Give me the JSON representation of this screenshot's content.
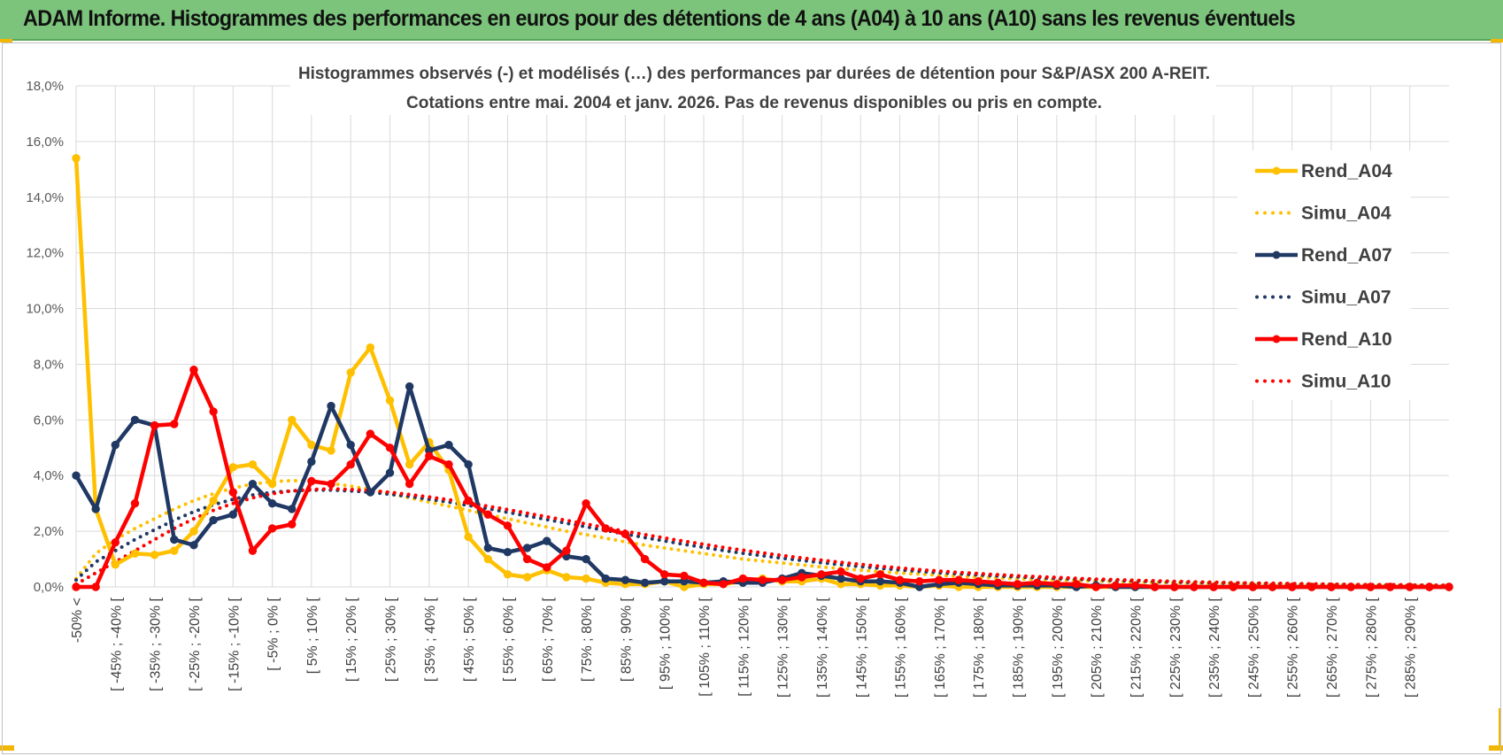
{
  "header": {
    "title": "ADAM Informe. Histogrammes des performances en euros pour des détentions de 4 ans (A04) à 10 ans (A10) sans les revenus éventuels"
  },
  "chart_data": {
    "type": "line",
    "title": "Histogrammes observés (-) et modélisés (…) des performances par durées de détention pour S&P/ASX 200 A-REIT.",
    "subtitle": "Cotations entre mai. 2004 et janv. 2026.  Pas de revenus disponibles ou pris en compte.",
    "xlabel": "",
    "ylabel": "",
    "ylim": [
      0,
      18
    ],
    "y_ticks": [
      "0,0%",
      "2,0%",
      "4,0%",
      "6,0%",
      "8,0%",
      "10,0%",
      "12,0%",
      "14,0%",
      "16,0%",
      "18,0%"
    ],
    "grid": true,
    "legend_position": "right",
    "categories": [
      "-50% <",
      "[ -50% ; -45% [",
      "[ -45% ; -40% [",
      "[ -40% ; -35% [",
      "[ -35% ; -30% [",
      "[ -30% ; -25% [",
      "[ -25% ; -20% [",
      "[ -20% ; -15% [",
      "[ -15% ; -10% [",
      "[ -10% ; -5% [",
      "[ -5% ; 0% [",
      "[ 0% ; 5% [",
      "[ 5% ; 10% [",
      "[ 10% ; 15% [",
      "[ 15% ; 20% [",
      "[ 20% ; 25% [",
      "[ 25% ; 30% [",
      "[ 30% ; 35% [",
      "[ 35% ; 40% [",
      "[ 40% ; 45% [",
      "[ 45% ; 50% [",
      "[ 50% ; 55% [",
      "[ 55% ; 60% [",
      "[ 60% ; 65% [",
      "[ 65% ; 70% [",
      "[ 70% ; 75% [",
      "[ 75% ; 80% [",
      "[ 80% ; 85% [",
      "[ 85% ; 90% [",
      "[ 90% ; 95% [",
      "[ 95% ; 100% [",
      "[ 100% ; 105% [",
      "[ 105% ; 110% [",
      "[ 110% ; 115% [",
      "[ 115% ; 120% [",
      "[ 120% ; 125% [",
      "[ 125% ; 130% [",
      "[ 130% ; 135% [",
      "[ 135% ; 140% [",
      "[ 140% ; 145% [",
      "[ 145% ; 150% [",
      "[ 150% ; 155% [",
      "[ 155% ; 160% [",
      "[ 160% ; 165% [",
      "[ 165% ; 170% [",
      "[ 170% ; 175% [",
      "[ 175% ; 180% [",
      "[ 180% ; 185% [",
      "[ 185% ; 190% [",
      "[ 190% ; 195% [",
      "[ 195% ; 200% [",
      "[ 200% ; 205% [",
      "[ 205% ; 210% [",
      "[ 210% ; 215% [",
      "[ 215% ; 220% [",
      "[ 220% ; 225% [",
      "[ 225% ; 230% [",
      "[ 230% ; 235% [",
      "[ 235% ; 240% [",
      "[ 240% ; 245% [",
      "[ 245% ; 250% [",
      "[ 250% ; 255% [",
      "[ 255% ; 260% [",
      "[ 260% ; 265% [",
      "[ 265% ; 270% [",
      "[ 270% ; 275% [",
      "[ 275% ; 280% [",
      "[ 280% ; 285% [",
      "[ 285% ; 290% [",
      "[ 290% ; 295% [",
      "[ 295% ; 300% ["
    ],
    "visible_tick_labels": [
      "-50% <",
      "[ -45% ; -40% [",
      "[ -35% ; -30% [",
      "[ -25% ; -20% [",
      "[ -15% ; -10% [",
      "[ -5% ; 0% [",
      "[ 5% ; 10% [",
      "[ 15% ; 20% [",
      "[ 25% ; 30% [",
      "[ 35% ; 40% [",
      "[ 45% ; 50% [",
      "[ 55% ; 60% [",
      "[ 65% ; 70% [",
      "[ 75% ; 80% [",
      "[ 85% ; 90% [",
      "[ 95% ; 100% [",
      "[ 105% ; 110% [",
      "[ 115% ; 120% [",
      "[ 125% ; 130% [",
      "[ 135% ; 140% [",
      "[ 145% ; 150% [",
      "[ 155% ; 160% [",
      "[ 165% ; 170% [",
      "[ 175% ; 180% [",
      "[ 185% ; 190% [",
      "[ 195% ; 200% [",
      "[ 205% ; 210% [",
      "[ 215% ; 220% [",
      "[ 225% ; 230% [",
      "[ 235% ; 240% [",
      "[ 245% ; 250% [",
      "[ 255% ; 260% [",
      "[ 265% ; 270% [",
      "[ 275% ; 280% [",
      "[ 285% ; 290% ["
    ],
    "series": [
      {
        "name": "Rend_A04",
        "color": "#ffc000",
        "style": "solid",
        "markers": true,
        "values": [
          15.4,
          2.8,
          0.8,
          1.2,
          1.15,
          1.3,
          2.0,
          3.1,
          4.3,
          4.4,
          3.7,
          6.0,
          5.1,
          4.9,
          7.7,
          8.6,
          6.7,
          4.4,
          5.2,
          4.2,
          1.8,
          1.0,
          0.45,
          0.35,
          0.6,
          0.35,
          0.3,
          0.15,
          0.1,
          0.1,
          0.2,
          0.0,
          0.1,
          0.1,
          0.2,
          0.3,
          0.2,
          0.2,
          0.3,
          0.1,
          0.1,
          0.05,
          0.05,
          0.0,
          0.05,
          0.0,
          0.0,
          0.0,
          0.0,
          0.0,
          0.0,
          0.0,
          0.0,
          0.0,
          0.0,
          0.0,
          0.0,
          0.0,
          0.0,
          0.0,
          0.0,
          0.0,
          0.0,
          0.0,
          0.0,
          0.0,
          0.0,
          0.0,
          0.0,
          0.0,
          0.0
        ]
      },
      {
        "name": "Simu_A04",
        "color": "#ffc000",
        "style": "dotted",
        "markers": false,
        "values": [
          0.3,
          1.2,
          1.7,
          2.1,
          2.45,
          2.8,
          3.1,
          3.35,
          3.55,
          3.7,
          3.78,
          3.82,
          3.8,
          3.72,
          3.62,
          3.5,
          3.35,
          3.2,
          3.05,
          2.9,
          2.75,
          2.6,
          2.45,
          2.3,
          2.15,
          2.0,
          1.88,
          1.75,
          1.62,
          1.5,
          1.4,
          1.3,
          1.2,
          1.1,
          1.0,
          0.93,
          0.86,
          0.79,
          0.72,
          0.66,
          0.6,
          0.55,
          0.5,
          0.46,
          0.42,
          0.38,
          0.35,
          0.32,
          0.29,
          0.27,
          0.25,
          0.23,
          0.21,
          0.19,
          0.17,
          0.16,
          0.15,
          0.14,
          0.13,
          0.12,
          0.11,
          0.1,
          0.09,
          0.08,
          0.07,
          0.07,
          0.06,
          0.06,
          0.05,
          0.05,
          0.04
        ]
      },
      {
        "name": "Rend_A07",
        "color": "#203864",
        "style": "solid",
        "markers": true,
        "values": [
          4.0,
          2.8,
          5.1,
          6.0,
          5.8,
          1.7,
          1.5,
          2.4,
          2.6,
          3.7,
          3.0,
          2.8,
          4.5,
          6.5,
          5.1,
          3.4,
          4.1,
          7.2,
          4.9,
          5.1,
          4.4,
          1.4,
          1.25,
          1.4,
          1.65,
          1.1,
          1.0,
          0.3,
          0.25,
          0.15,
          0.2,
          0.2,
          0.15,
          0.2,
          0.15,
          0.15,
          0.3,
          0.5,
          0.4,
          0.3,
          0.2,
          0.2,
          0.15,
          0.0,
          0.1,
          0.15,
          0.1,
          0.05,
          0.05,
          0.05,
          0.05,
          0.0,
          0.05,
          0.0,
          0.0,
          0.0,
          0.0,
          0.0,
          0.0,
          0.0,
          0.0,
          0.0,
          0.0,
          0.0,
          0.0,
          0.0,
          0.0,
          0.0,
          0.0,
          0.0,
          0.0
        ]
      },
      {
        "name": "Simu_A07",
        "color": "#203864",
        "style": "dotted",
        "markers": false,
        "values": [
          0.25,
          0.9,
          1.3,
          1.7,
          2.05,
          2.4,
          2.7,
          2.95,
          3.15,
          3.3,
          3.4,
          3.45,
          3.48,
          3.48,
          3.45,
          3.4,
          3.33,
          3.25,
          3.15,
          3.05,
          2.93,
          2.81,
          2.68,
          2.55,
          2.42,
          2.29,
          2.16,
          2.03,
          1.9,
          1.77,
          1.65,
          1.53,
          1.42,
          1.31,
          1.21,
          1.12,
          1.03,
          0.95,
          0.87,
          0.8,
          0.73,
          0.67,
          0.61,
          0.56,
          0.51,
          0.47,
          0.43,
          0.39,
          0.36,
          0.33,
          0.3,
          0.28,
          0.25,
          0.23,
          0.21,
          0.19,
          0.17,
          0.16,
          0.15,
          0.14,
          0.13,
          0.12,
          0.11,
          0.1,
          0.09,
          0.08,
          0.07,
          0.07,
          0.06,
          0.06,
          0.05
        ]
      },
      {
        "name": "Rend_A10",
        "color": "#ff0000",
        "style": "solid",
        "markers": true,
        "values": [
          0.0,
          0.0,
          1.6,
          3.0,
          5.8,
          5.85,
          7.8,
          6.3,
          3.4,
          1.3,
          2.1,
          2.25,
          3.8,
          3.7,
          4.4,
          5.5,
          5.0,
          3.7,
          4.7,
          4.4,
          3.1,
          2.6,
          2.2,
          1.0,
          0.7,
          1.3,
          3.0,
          2.1,
          1.9,
          1.0,
          0.45,
          0.4,
          0.15,
          0.1,
          0.3,
          0.25,
          0.25,
          0.35,
          0.45,
          0.55,
          0.3,
          0.45,
          0.25,
          0.2,
          0.25,
          0.25,
          0.2,
          0.15,
          0.1,
          0.15,
          0.1,
          0.1,
          0.0,
          0.05,
          0.05,
          0.0,
          0.0,
          0.0,
          0.0,
          0.0,
          0.0,
          0.0,
          0.0,
          0.0,
          0.0,
          0.0,
          0.0,
          0.0,
          0.0,
          0.0,
          0.0
        ]
      },
      {
        "name": "Simu_A10",
        "color": "#ff0000",
        "style": "dotted",
        "markers": false,
        "values": [
          0.1,
          0.5,
          0.9,
          1.3,
          1.7,
          2.1,
          2.45,
          2.75,
          3.0,
          3.2,
          3.35,
          3.45,
          3.5,
          3.52,
          3.5,
          3.46,
          3.4,
          3.32,
          3.23,
          3.13,
          3.02,
          2.9,
          2.78,
          2.65,
          2.52,
          2.39,
          2.26,
          2.13,
          2.0,
          1.88,
          1.76,
          1.64,
          1.53,
          1.42,
          1.32,
          1.22,
          1.13,
          1.04,
          0.96,
          0.88,
          0.81,
          0.74,
          0.68,
          0.62,
          0.57,
          0.52,
          0.48,
          0.44,
          0.4,
          0.37,
          0.34,
          0.31,
          0.28,
          0.26,
          0.24,
          0.22,
          0.2,
          0.18,
          0.17,
          0.15,
          0.14,
          0.13,
          0.12,
          0.11,
          0.1,
          0.09,
          0.08,
          0.08,
          0.07,
          0.06,
          0.06
        ]
      }
    ]
  }
}
